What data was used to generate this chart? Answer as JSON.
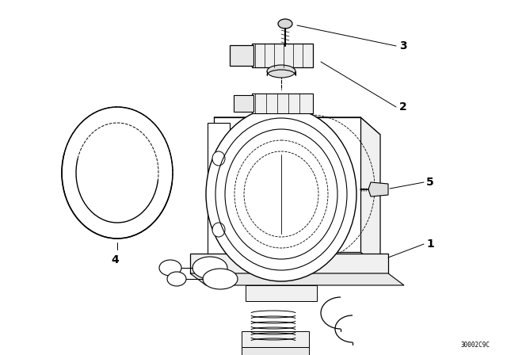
{
  "bg_color": "#ffffff",
  "line_color": "#000000",
  "fig_width": 6.4,
  "fig_height": 4.48,
  "dpi": 100,
  "watermark_text": "30002C9C",
  "watermark_fontsize": 5.5,
  "label_fontsize": 10,
  "label_fontweight": "bold"
}
